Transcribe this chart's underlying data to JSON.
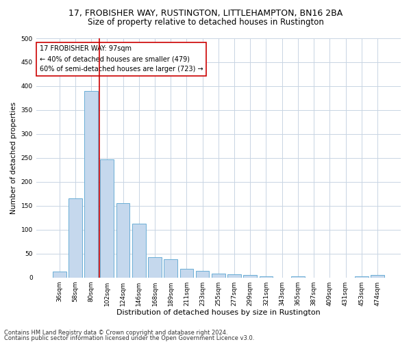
{
  "title": "17, FROBISHER WAY, RUSTINGTON, LITTLEHAMPTON, BN16 2BA",
  "subtitle": "Size of property relative to detached houses in Rustington",
  "xlabel": "Distribution of detached houses by size in Rustington",
  "ylabel": "Number of detached properties",
  "categories": [
    "36sqm",
    "58sqm",
    "80sqm",
    "102sqm",
    "124sqm",
    "146sqm",
    "168sqm",
    "189sqm",
    "211sqm",
    "233sqm",
    "255sqm",
    "277sqm",
    "299sqm",
    "321sqm",
    "343sqm",
    "365sqm",
    "387sqm",
    "409sqm",
    "431sqm",
    "453sqm",
    "474sqm"
  ],
  "values": [
    12,
    165,
    390,
    247,
    155,
    112,
    42,
    38,
    18,
    14,
    8,
    7,
    5,
    3,
    0,
    3,
    0,
    0,
    0,
    3,
    5
  ],
  "bar_color": "#c5d8ed",
  "bar_edge_color": "#6aaed6",
  "vline_color": "#cc0000",
  "annotation_text": "17 FROBISHER WAY: 97sqm\n← 40% of detached houses are smaller (479)\n60% of semi-detached houses are larger (723) →",
  "annotation_box_color": "#cc0000",
  "annotation_box_fill": "#ffffff",
  "ylim": [
    0,
    500
  ],
  "yticks": [
    0,
    50,
    100,
    150,
    200,
    250,
    300,
    350,
    400,
    450,
    500
  ],
  "grid_color": "#c8d4e3",
  "footer_line1": "Contains HM Land Registry data © Crown copyright and database right 2024.",
  "footer_line2": "Contains public sector information licensed under the Open Government Licence v3.0.",
  "title_fontsize": 9,
  "subtitle_fontsize": 8.5,
  "xlabel_fontsize": 8,
  "ylabel_fontsize": 7.5,
  "tick_fontsize": 6.5,
  "annotation_fontsize": 7,
  "footer_fontsize": 6
}
